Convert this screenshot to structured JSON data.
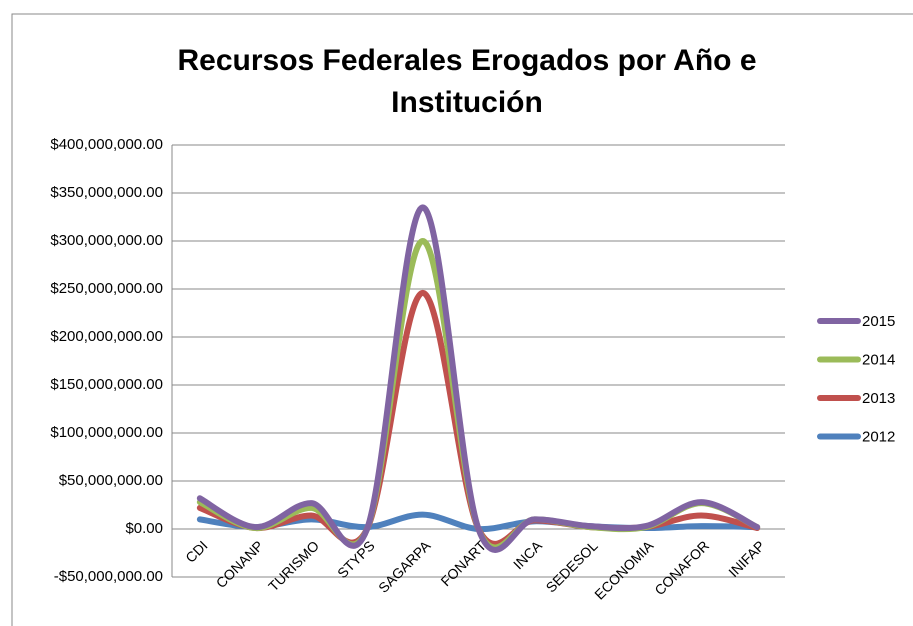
{
  "chart_data": {
    "type": "line",
    "title": "Recursos Federales Erogados por Año e Institución",
    "categories": [
      "CDI",
      "CONANP",
      "TURISMO",
      "STYPS",
      "SAGARPA",
      "FONART",
      "INCA",
      "SEDESOL",
      "ECONOMIA",
      "CONAFOR",
      "INIFAP"
    ],
    "series": [
      {
        "name": "2015",
        "color": "#8064a2",
        "values": [
          32000000,
          2000000,
          27000000,
          0,
          335000000,
          0,
          10000000,
          3000000,
          3000000,
          28000000,
          2000000
        ]
      },
      {
        "name": "2014",
        "color": "#9bbb59",
        "values": [
          28000000,
          1000000,
          22000000,
          0,
          300000000,
          0,
          10000000,
          2000000,
          2000000,
          27000000,
          2000000
        ]
      },
      {
        "name": "2013",
        "color": "#c0504d",
        "values": [
          22000000,
          1000000,
          14000000,
          0,
          246000000,
          0,
          9000000,
          2000000,
          2000000,
          14000000,
          1000000
        ]
      },
      {
        "name": "2012",
        "color": "#4f81bd",
        "values": [
          10000000,
          2000000,
          10000000,
          2000000,
          15000000,
          0,
          8000000,
          3000000,
          1000000,
          3000000,
          2000000
        ]
      }
    ],
    "ylim": [
      -50000000,
      400000000
    ],
    "yticks": [
      {
        "value": -50000000,
        "label": "-$50,000,000.00"
      },
      {
        "value": 0,
        "label": "$0.00"
      },
      {
        "value": 50000000,
        "label": "$50,000,000.00"
      },
      {
        "value": 100000000,
        "label": "$100,000,000.00"
      },
      {
        "value": 150000000,
        "label": "$150,000,000.00"
      },
      {
        "value": 200000000,
        "label": "$200,000,000.00"
      },
      {
        "value": 250000000,
        "label": "$250,000,000.00"
      },
      {
        "value": 300000000,
        "label": "$300,000,000.00"
      },
      {
        "value": 350000000,
        "label": "$350,000,000.00"
      },
      {
        "value": 400000000,
        "label": "$400,000,000.00"
      }
    ],
    "grid": true,
    "smooth": true,
    "legend": "right"
  }
}
